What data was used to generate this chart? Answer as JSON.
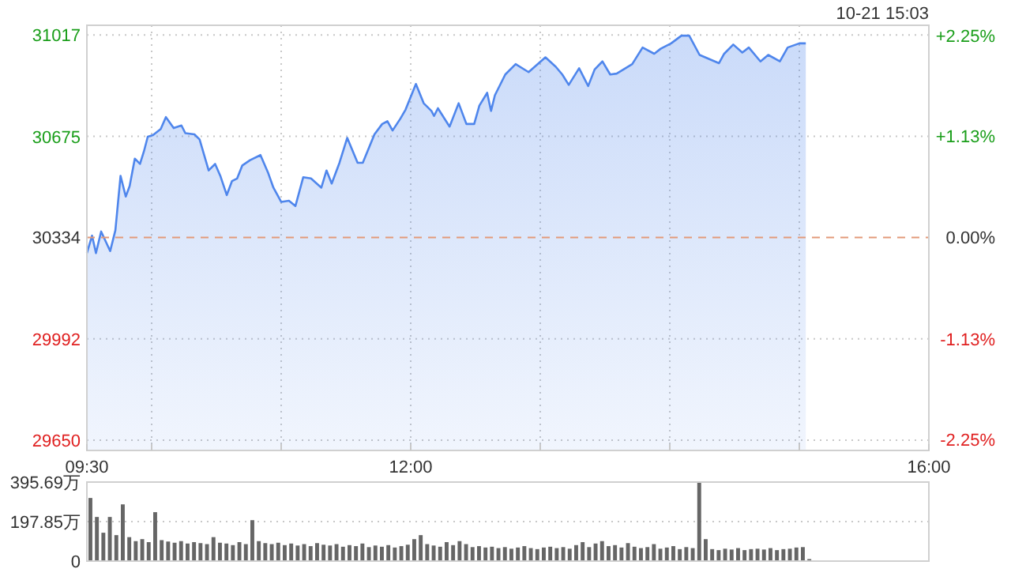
{
  "chart_data": [
    {
      "type": "area",
      "annotations": [
        "10-21 15:03"
      ],
      "xlim": [
        9.5,
        16
      ],
      "xticks": [
        {
          "value": 9.5,
          "label": "09:30"
        },
        {
          "value": 10,
          "label": null
        },
        {
          "value": 11,
          "label": null
        },
        {
          "value": 12,
          "label": "12:00"
        },
        {
          "value": 13,
          "label": null
        },
        {
          "value": 14,
          "label": null
        },
        {
          "value": 15,
          "label": null
        },
        {
          "value": 16,
          "label": "16:00"
        }
      ],
      "ylim": [
        29615,
        31050
      ],
      "yticks": [
        29650,
        29992,
        30334,
        30675,
        31017
      ],
      "y2lim": [
        -2.37,
        2.36
      ],
      "y2ticks": [
        {
          "value": -2.25,
          "label": "-2.25%"
        },
        {
          "value": -1.13,
          "label": "-1.13%"
        },
        {
          "value": 0,
          "label": "0.00%"
        },
        {
          "value": 1.13,
          "label": "+1.13%"
        },
        {
          "value": 2.25,
          "label": "+2.25%"
        }
      ],
      "grid": true,
      "ref_lines": [
        {
          "axis": "y",
          "value": 30334,
          "color": "#e39a7a",
          "line_style": "dashed"
        }
      ],
      "series": [
        {
          "color": "#4f86ec",
          "x": [
            9.5,
            9.54,
            9.57,
            9.61,
            9.68,
            9.72,
            9.76,
            9.8,
            9.83,
            9.87,
            9.91,
            9.94,
            9.97,
            10.01,
            10.07,
            10.11,
            10.17,
            10.23,
            10.26,
            10.33,
            10.37,
            10.44,
            10.49,
            10.53,
            10.58,
            10.62,
            10.66,
            10.7,
            10.76,
            10.84,
            10.9,
            10.94,
            11.0,
            11.06,
            11.11,
            11.17,
            11.23,
            11.31,
            11.35,
            11.39,
            11.45,
            11.51,
            11.59,
            11.63,
            11.72,
            11.78,
            11.82,
            11.86,
            11.92,
            11.96,
            12.04,
            12.1,
            12.16,
            12.18,
            12.21,
            12.3,
            12.37,
            12.43,
            12.49,
            12.53,
            12.59,
            12.62,
            12.65,
            12.73,
            12.81,
            12.91,
            13.04,
            13.12,
            13.17,
            13.22,
            13.3,
            13.37,
            13.42,
            13.48,
            13.54,
            13.59,
            13.71,
            13.79,
            13.88,
            13.93,
            14.01,
            14.09,
            14.15,
            14.23,
            14.38,
            14.42,
            14.49,
            14.56,
            14.61,
            14.7,
            14.76,
            14.85,
            14.91,
            15.0,
            15.05
          ],
          "values": [
            30281,
            30340,
            30281,
            30354,
            30288,
            30358,
            30542,
            30472,
            30507,
            30600,
            30582,
            30624,
            30674,
            30679,
            30700,
            30740,
            30703,
            30712,
            30686,
            30682,
            30665,
            30560,
            30582,
            30542,
            30477,
            30524,
            30533,
            30577,
            30595,
            30612,
            30551,
            30502,
            30454,
            30458,
            30440,
            30537,
            30533,
            30502,
            30560,
            30516,
            30586,
            30670,
            30586,
            30586,
            30682,
            30717,
            30726,
            30695,
            30735,
            30765,
            30852,
            30787,
            30761,
            30744,
            30770,
            30708,
            30787,
            30717,
            30717,
            30779,
            30822,
            30761,
            30814,
            30884,
            30919,
            30892,
            30942,
            30910,
            30884,
            30849,
            30905,
            30845,
            30901,
            30928,
            30884,
            30887,
            30919,
            30975,
            30954,
            30971,
            30989,
            31015,
            31015,
            30950,
            30922,
            30954,
            30985,
            30958,
            30975,
            30928,
            30950,
            30928,
            30975,
            30989,
            30989
          ]
        }
      ]
    },
    {
      "type": "bar",
      "xlim": [
        9.5,
        16
      ],
      "ylim": [
        0,
        395.69
      ],
      "yticks": [
        0,
        {
          "value": 197.85,
          "label": "197.85万"
        },
        {
          "value": 395.69,
          "label": "395.69万"
        }
      ],
      "grid": "y",
      "tick_labels": "y",
      "series": [
        {
          "color": "#666666",
          "x": [
            9.5,
            9.55,
            9.6,
            9.65,
            9.7,
            9.75,
            9.8,
            9.85,
            9.9,
            9.95,
            10.0,
            10.05,
            10.1,
            10.15,
            10.2,
            10.25,
            10.3,
            10.35,
            10.4,
            10.45,
            10.5,
            10.55,
            10.6,
            10.65,
            10.7,
            10.75,
            10.8,
            10.85,
            10.9,
            10.95,
            11.0,
            11.05,
            11.1,
            11.15,
            11.2,
            11.25,
            11.3,
            11.35,
            11.4,
            11.45,
            11.5,
            11.55,
            11.6,
            11.65,
            11.7,
            11.75,
            11.8,
            11.85,
            11.9,
            11.95,
            12.0,
            12.05,
            12.1,
            12.15,
            12.2,
            12.25,
            12.3,
            12.35,
            12.4,
            12.45,
            12.5,
            12.55,
            12.6,
            12.65,
            12.7,
            12.75,
            12.8,
            12.85,
            12.9,
            12.95,
            13.0,
            13.05,
            13.1,
            13.15,
            13.2,
            13.25,
            13.3,
            13.35,
            13.4,
            13.45,
            13.5,
            13.55,
            13.6,
            13.65,
            13.7,
            13.75,
            13.8,
            13.85,
            13.9,
            13.95,
            14.0,
            14.05,
            14.1,
            14.15,
            14.2,
            14.25,
            14.3,
            14.35,
            14.4,
            14.45,
            14.5,
            14.55,
            14.6,
            14.65,
            14.7,
            14.75,
            14.8,
            14.85,
            14.9,
            14.95,
            15.0,
            15.05
          ],
          "values": [
            316,
            221,
            142,
            221,
            130,
            284,
            120,
            100,
            110,
            95,
            245,
            105,
            98,
            92,
            100,
            88,
            95,
            90,
            85,
            120,
            92,
            88,
            80,
            95,
            85,
            205,
            100,
            90,
            85,
            92,
            80,
            88,
            78,
            85,
            75,
            90,
            82,
            78,
            85,
            72,
            80,
            75,
            88,
            70,
            78,
            72,
            80,
            68,
            75,
            82,
            110,
            130,
            85,
            78,
            72,
            95,
            80,
            100,
            85,
            70,
            75,
            68,
            72,
            65,
            70,
            62,
            68,
            75,
            65,
            60,
            68,
            72,
            65,
            70,
            62,
            80,
            95,
            70,
            88,
            100,
            75,
            80,
            68,
            90,
            72,
            65,
            70,
            85,
            62,
            68,
            75,
            60,
            70,
            65,
            395.69,
            110,
            60,
            55,
            62,
            58,
            65,
            55,
            60,
            62,
            58,
            65,
            55,
            60,
            62,
            68,
            70,
            10
          ]
        }
      ]
    }
  ]
}
